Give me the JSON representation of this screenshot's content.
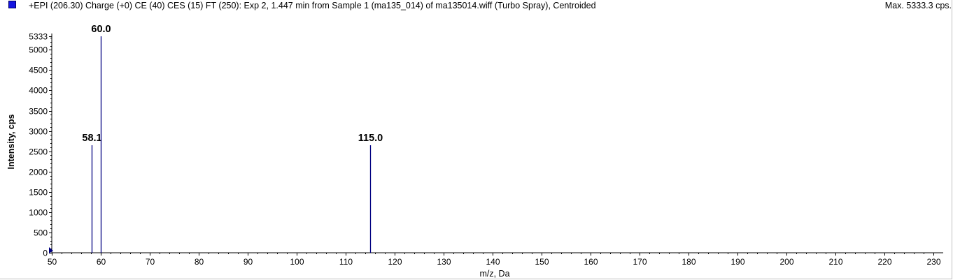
{
  "header": {
    "title": "+EPI (206.30) Charge (+0) CE (40) CES (15) FT (250): Exp 2, 1.447 min from Sample 1 (ma135_014) of ma135014.wiff (Turbo Spray), Centroided",
    "max_label": "Max. 5333.3 cps."
  },
  "colors": {
    "series": "#000080",
    "legend": "#1414e0"
  },
  "chart_data": {
    "type": "bar",
    "xlabel": "m/z, Da",
    "ylabel": "Intensity, cps",
    "xlim": [
      50,
      232
    ],
    "ylim": [
      0,
      5333
    ],
    "x_ticks": [
      50,
      60,
      70,
      80,
      90,
      100,
      110,
      120,
      130,
      140,
      150,
      160,
      170,
      180,
      190,
      200,
      210,
      220,
      230
    ],
    "y_ticks": [
      0,
      500,
      1000,
      1500,
      2000,
      2500,
      3000,
      3500,
      4000,
      4500,
      5000,
      5333
    ],
    "grid": false,
    "series": [
      {
        "peaks": [
          {
            "x": 58.1,
            "y": 2650,
            "label": "58.1"
          },
          {
            "x": 60.0,
            "y": 5333.3,
            "label": "60.0"
          },
          {
            "x": 115.0,
            "y": 2650,
            "label": "115.0"
          }
        ]
      }
    ]
  }
}
